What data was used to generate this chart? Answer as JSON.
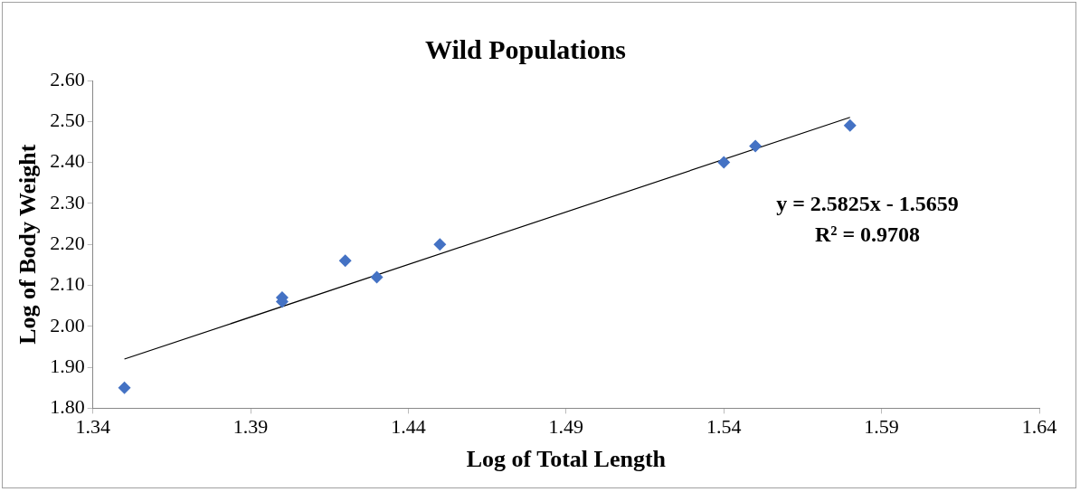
{
  "chart_data": {
    "type": "scatter",
    "title": "Wild Populations",
    "xlabel": "Log of Total Length",
    "ylabel": "Log of Body Weight",
    "series": [
      {
        "color": "#4472c4",
        "marker": "diamond",
        "x": [
          1.35,
          1.4,
          1.4,
          1.42,
          1.43,
          1.45,
          1.54,
          1.55,
          1.58
        ],
        "values": [
          1.85,
          2.07,
          2.06,
          2.16,
          2.12,
          2.2,
          2.4,
          2.44,
          2.49
        ]
      },
      {
        "type": "line",
        "color": "#000000",
        "marker": "none",
        "x": [
          1.35,
          1.58
        ],
        "values": [
          1.92,
          2.51
        ]
      }
    ],
    "xlim": [
      1.34,
      1.64
    ],
    "xticks": [
      1.34,
      1.39,
      1.44,
      1.49,
      1.54,
      1.59,
      1.64
    ],
    "ylim": [
      1.8,
      2.6
    ],
    "yticks": [
      {
        "value": 1.8,
        "label": "1.80"
      },
      {
        "value": 1.9,
        "label": "1.90"
      },
      {
        "value": 2.0,
        "label": "2.00"
      },
      {
        "value": 2.1,
        "label": "2.10"
      },
      {
        "value": 2.2,
        "label": "2.20"
      },
      {
        "value": 2.3,
        "label": "2.30"
      },
      {
        "value": 2.4,
        "label": "2.40"
      },
      {
        "value": 2.5,
        "label": "2.50"
      },
      {
        "value": 2.6,
        "label": "2.60"
      }
    ],
    "annotations": [
      "y = 2.5825x - 1.5659",
      "R² = 0.9708"
    ],
    "grid": false,
    "legend": false,
    "line_style": "solid"
  }
}
